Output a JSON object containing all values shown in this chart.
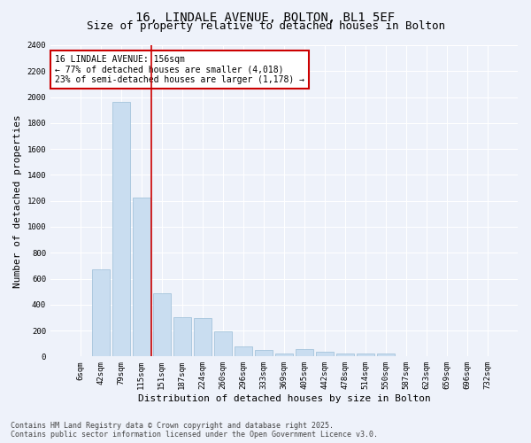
{
  "title_line1": "16, LINDALE AVENUE, BOLTON, BL1 5EF",
  "title_line2": "Size of property relative to detached houses in Bolton",
  "xlabel": "Distribution of detached houses by size in Bolton",
  "ylabel": "Number of detached properties",
  "bar_labels": [
    "6sqm",
    "42sqm",
    "79sqm",
    "115sqm",
    "151sqm",
    "187sqm",
    "224sqm",
    "260sqm",
    "296sqm",
    "333sqm",
    "369sqm",
    "405sqm",
    "442sqm",
    "478sqm",
    "514sqm",
    "550sqm",
    "587sqm",
    "623sqm",
    "659sqm",
    "696sqm",
    "732sqm"
  ],
  "bar_values": [
    5,
    670,
    1960,
    1225,
    490,
    300,
    295,
    195,
    80,
    50,
    25,
    60,
    35,
    25,
    25,
    20,
    5,
    5,
    5,
    3,
    3
  ],
  "bar_color": "#c9ddf0",
  "bar_edge_color": "#9abdd6",
  "vline_x_index": 3.5,
  "vline_color": "#cc0000",
  "annotation_text": "16 LINDALE AVENUE: 156sqm\n← 77% of detached houses are smaller (4,018)\n23% of semi-detached houses are larger (1,178) →",
  "annotation_box_edgecolor": "#cc0000",
  "ylim": [
    0,
    2400
  ],
  "yticks": [
    0,
    200,
    400,
    600,
    800,
    1000,
    1200,
    1400,
    1600,
    1800,
    2000,
    2200,
    2400
  ],
  "background_color": "#eef2fa",
  "grid_color": "#ffffff",
  "footer_text": "Contains HM Land Registry data © Crown copyright and database right 2025.\nContains public sector information licensed under the Open Government Licence v3.0.",
  "title_fontsize": 10,
  "subtitle_fontsize": 9,
  "ylabel_fontsize": 8,
  "xlabel_fontsize": 8,
  "tick_fontsize": 6.5,
  "annotation_fontsize": 7,
  "footer_fontsize": 6
}
